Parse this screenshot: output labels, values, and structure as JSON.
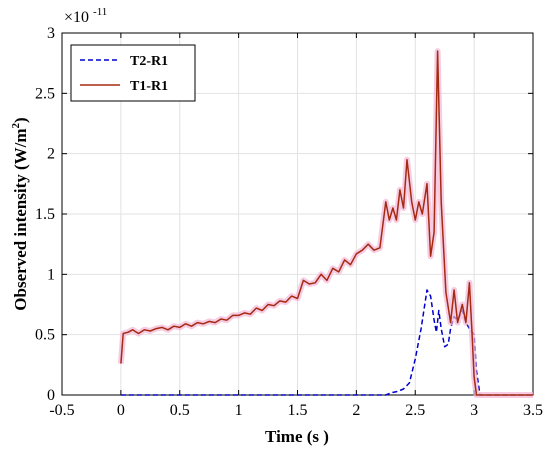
{
  "chart_data": {
    "type": "line",
    "title": "",
    "xlabel": "Time (s )",
    "ylabel": "Observed intensity (W/m2)",
    "ylabel_main": "Observed intensity (W/m",
    "ylabel_sup": "2",
    "ylabel_close": ")",
    "y_multiplier": "×10",
    "y_multiplier_exp": "-11",
    "xlim": [
      -0.5,
      3.5
    ],
    "ylim": [
      0,
      3
    ],
    "xticks": [
      "-0.5",
      "0",
      "0.5",
      "1",
      "1.5",
      "2",
      "2.5",
      "3",
      "3.5"
    ],
    "yticks": [
      "0",
      "0.5",
      "1",
      "1.5",
      "2",
      "2.5",
      "3"
    ],
    "grid": true,
    "legend_position": "top-left",
    "series": [
      {
        "name": "T2-R1",
        "color": "#0000cc",
        "style": "dashed",
        "x": [
          0,
          0.5,
          1.0,
          1.5,
          2.0,
          2.25,
          2.3,
          2.35,
          2.4,
          2.45,
          2.5,
          2.55,
          2.6,
          2.63,
          2.66,
          2.68,
          2.7,
          2.72,
          2.75,
          2.78,
          2.8,
          2.83,
          2.86,
          2.9,
          2.93,
          2.96,
          3.0,
          3.02,
          3.05,
          3.5
        ],
        "y": [
          0.0,
          0.0,
          0.0,
          0.0,
          0.0,
          0.0,
          0.02,
          0.03,
          0.05,
          0.1,
          0.3,
          0.55,
          0.87,
          0.82,
          0.62,
          0.52,
          0.7,
          0.55,
          0.4,
          0.42,
          0.55,
          0.65,
          0.62,
          0.7,
          0.6,
          0.55,
          0.5,
          0.2,
          0.0,
          0.0
        ]
      },
      {
        "name": "T1-R1",
        "color": "#a52a12",
        "style": "solid",
        "x": [
          0,
          0.02,
          0.06,
          0.1,
          0.15,
          0.2,
          0.25,
          0.3,
          0.35,
          0.4,
          0.45,
          0.5,
          0.55,
          0.6,
          0.65,
          0.7,
          0.75,
          0.8,
          0.85,
          0.9,
          0.95,
          1.0,
          1.05,
          1.1,
          1.15,
          1.2,
          1.25,
          1.3,
          1.35,
          1.4,
          1.45,
          1.5,
          1.55,
          1.6,
          1.65,
          1.7,
          1.75,
          1.8,
          1.85,
          1.9,
          1.95,
          2.0,
          2.05,
          2.1,
          2.15,
          2.2,
          2.25,
          2.28,
          2.31,
          2.34,
          2.37,
          2.4,
          2.43,
          2.47,
          2.5,
          2.53,
          2.56,
          2.6,
          2.63,
          2.66,
          2.69,
          2.72,
          2.76,
          2.8,
          2.83,
          2.86,
          2.9,
          2.93,
          2.96,
          2.98,
          3.0,
          3.02,
          3.05,
          3.5
        ],
        "y": [
          0.26,
          0.51,
          0.52,
          0.54,
          0.51,
          0.54,
          0.53,
          0.55,
          0.56,
          0.54,
          0.57,
          0.56,
          0.59,
          0.57,
          0.6,
          0.59,
          0.61,
          0.6,
          0.63,
          0.62,
          0.66,
          0.66,
          0.68,
          0.67,
          0.72,
          0.7,
          0.75,
          0.74,
          0.78,
          0.77,
          0.82,
          0.8,
          0.95,
          0.92,
          0.93,
          1.0,
          0.95,
          1.05,
          1.02,
          1.12,
          1.08,
          1.17,
          1.2,
          1.25,
          1.2,
          1.22,
          1.6,
          1.45,
          1.55,
          1.45,
          1.7,
          1.55,
          1.95,
          1.6,
          1.45,
          1.6,
          1.5,
          1.75,
          1.15,
          1.35,
          2.85,
          1.6,
          0.85,
          0.6,
          0.87,
          0.6,
          0.75,
          0.6,
          0.93,
          0.55,
          0.15,
          0.0,
          0.0,
          0.0
        ]
      }
    ]
  }
}
